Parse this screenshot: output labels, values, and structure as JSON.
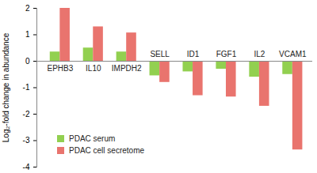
{
  "chart_data": {
    "type": "bar",
    "categories": [
      "EPHB3",
      "IL10",
      "IMPDH2",
      "SELL",
      "ID1",
      "FGF1",
      "IL2",
      "VCAM1"
    ],
    "series": [
      {
        "name": "PDAC serum",
        "color": "#92d050",
        "values": [
          0.35,
          0.5,
          0.35,
          -0.55,
          -0.4,
          -0.3,
          -0.6,
          -0.5
        ]
      },
      {
        "name": "PDAC cell secretome",
        "color": "#e9746e",
        "values": [
          2.0,
          1.3,
          1.07,
          -0.8,
          -1.3,
          -1.35,
          -1.7,
          -3.35
        ]
      }
    ],
    "y_label": "Log₂-fold change in abundance",
    "ylim": [
      -4,
      2
    ],
    "yticks": [
      -4,
      -3,
      -2,
      -1,
      0,
      1,
      2
    ],
    "legend": "lower left"
  }
}
